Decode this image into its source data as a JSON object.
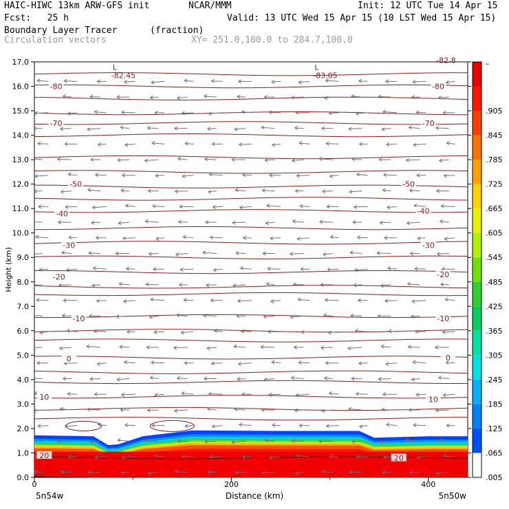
{
  "header": {
    "model": "HAIC-HIWC 13km ARW-GFS init",
    "org": "NCAR/MMM",
    "init": "Init: 12 UTC Tue 14 Apr 15",
    "fcst": "Fcst:   25 h",
    "valid": "Valid: 13 UTC Wed 15 Apr 15 (10 LST Wed 15 Apr 15)",
    "field": "Boundary Layer Tracer",
    "units": "(fraction)",
    "vectors": "Circulation vectors",
    "xy": "XY= 251.0,100.0 to 284.7,100.0"
  },
  "chart_data": {
    "type": "heatmap",
    "title": "Boundary Layer Tracer (fraction)",
    "ylabel": "Height (km)",
    "xlabel": "Distance (km)",
    "ylim": [
      0,
      17
    ],
    "xlim": [
      0,
      440
    ],
    "y_ticks": [
      "0.0",
      "1.0",
      "2.0",
      "3.0",
      "4.0",
      "5.0",
      "6.0",
      "7.0",
      "8.0",
      "9.0",
      "10.0",
      "11.0",
      "12.0",
      "13.0",
      "14.0",
      "15.0",
      "16.0",
      "17.0"
    ],
    "x_ticks": [
      "0",
      "200",
      "400"
    ],
    "x_endpoints": [
      "5n54w",
      "5n50w"
    ],
    "colorbar_labels": [
      ".005",
      ".065",
      ".125",
      ".185",
      ".245",
      ".305",
      ".365",
      ".425",
      ".485",
      ".545",
      ".605",
      ".665",
      ".725",
      ".785",
      ".845",
      ".905"
    ],
    "colorbar_colors": [
      "#ffffff",
      "#0050ff",
      "#0080ff",
      "#00b0ff",
      "#00e0e0",
      "#00e0a0",
      "#00d060",
      "#30d030",
      "#70e000",
      "#b0f000",
      "#e8f000",
      "#ffd000",
      "#ffa000",
      "#ff7000",
      "#ff4000",
      "#ff1500",
      "#e80000"
    ],
    "boundary_layer_top_km": [
      [
        0,
        1.72
      ],
      [
        60,
        1.68
      ],
      [
        75,
        1.32
      ],
      [
        85,
        1.35
      ],
      [
        110,
        1.68
      ],
      [
        160,
        1.92
      ],
      [
        250,
        1.9
      ],
      [
        330,
        1.9
      ],
      [
        345,
        1.62
      ],
      [
        400,
        1.68
      ],
      [
        440,
        1.68
      ]
    ],
    "isotherm_labels": [
      {
        "text": "-80",
        "x": 22,
        "y": 16.0
      },
      {
        "text": "-80",
        "x": 410,
        "y": 16.0
      },
      {
        "text": "-70",
        "x": 22,
        "y": 14.5
      },
      {
        "text": "-70",
        "x": 400,
        "y": 14.5
      },
      {
        "text": "-50",
        "x": 42,
        "y": 12.0
      },
      {
        "text": "-50",
        "x": 380,
        "y": 12.0
      },
      {
        "text": "-40",
        "x": 28,
        "y": 10.8
      },
      {
        "text": "-40",
        "x": 395,
        "y": 10.9
      },
      {
        "text": "-30",
        "x": 35,
        "y": 9.5
      },
      {
        "text": "-30",
        "x": 400,
        "y": 9.5
      },
      {
        "text": "-20",
        "x": 25,
        "y": 8.2
      },
      {
        "text": "-20",
        "x": 415,
        "y": 8.3
      },
      {
        "text": "-10",
        "x": 45,
        "y": 6.5
      },
      {
        "text": "-10",
        "x": 415,
        "y": 6.5
      },
      {
        "text": "0",
        "x": 35,
        "y": 4.85
      },
      {
        "text": "0",
        "x": 420,
        "y": 4.9
      },
      {
        "text": "10",
        "x": 10,
        "y": 3.3
      },
      {
        "text": "10",
        "x": 405,
        "y": 3.2
      },
      {
        "text": "20",
        "x": 10,
        "y": 0.9
      },
      {
        "text": "20",
        "x": 370,
        "y": 0.8
      }
    ],
    "isotherm_heights_km": [
      16.5,
      16.0,
      15.5,
      14.9,
      14.5,
      14.0,
      13.1,
      12.5,
      11.9,
      11.4,
      10.9,
      10.2,
      9.6,
      9.0,
      8.4,
      7.8,
      7.5,
      6.6,
      6.0,
      5.6,
      4.9,
      4.3,
      3.9,
      3.3,
      2.8,
      2.4
    ],
    "lows": [
      {
        "text": "L",
        "value": "-82.45",
        "x": 85,
        "y": 16.9
      },
      {
        "text": "L",
        "value": "-83.05",
        "x": 290,
        "y": 16.9
      },
      {
        "text": "",
        "value": "-82.8",
        "x": 415,
        "y": 17.1
      }
    ]
  }
}
